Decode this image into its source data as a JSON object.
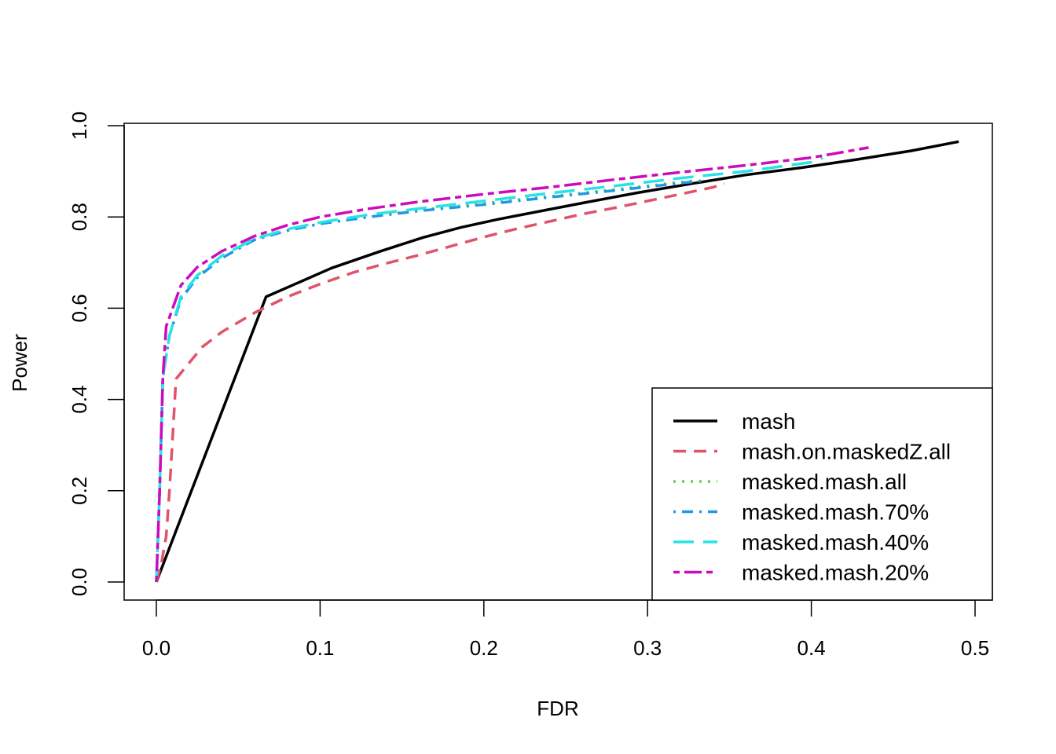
{
  "chart_data": {
    "type": "line",
    "title": "",
    "xlabel": "FDR",
    "ylabel": "Power",
    "xlim": [
      0,
      0.5
    ],
    "ylim": [
      0,
      1
    ],
    "x_ticks": [
      "0.0",
      "0.1",
      "0.2",
      "0.3",
      "0.4",
      "0.5"
    ],
    "y_ticks": [
      "0.0",
      "0.2",
      "0.4",
      "0.6",
      "0.8",
      "1.0"
    ],
    "grid": false,
    "legend_position": "bottom-right",
    "series": [
      {
        "name": "mash",
        "color": "#000000",
        "dash": "solid",
        "points": [
          [
            0,
            0
          ],
          [
            0.067,
            0.625
          ],
          [
            0.107,
            0.688
          ],
          [
            0.137,
            0.725
          ],
          [
            0.163,
            0.755
          ],
          [
            0.186,
            0.777
          ],
          [
            0.209,
            0.795
          ],
          [
            0.235,
            0.813
          ],
          [
            0.264,
            0.833
          ],
          [
            0.294,
            0.853
          ],
          [
            0.327,
            0.873
          ],
          [
            0.36,
            0.892
          ],
          [
            0.394,
            0.908
          ],
          [
            0.428,
            0.926
          ],
          [
            0.461,
            0.945
          ],
          [
            0.49,
            0.965
          ]
        ]
      },
      {
        "name": "mash.on.maskedZ.all",
        "color": "#DF536B",
        "dash": "dashed",
        "points": [
          [
            0,
            0
          ],
          [
            0.003,
            0.04
          ],
          [
            0.006,
            0.1
          ],
          [
            0.008,
            0.2
          ],
          [
            0.01,
            0.32
          ],
          [
            0.012,
            0.445
          ],
          [
            0.02,
            0.48
          ],
          [
            0.028,
            0.515
          ],
          [
            0.04,
            0.548
          ],
          [
            0.06,
            0.59
          ],
          [
            0.08,
            0.625
          ],
          [
            0.1,
            0.653
          ],
          [
            0.12,
            0.678
          ],
          [
            0.14,
            0.698
          ],
          [
            0.16,
            0.716
          ],
          [
            0.18,
            0.736
          ],
          [
            0.2,
            0.756
          ],
          [
            0.22,
            0.774
          ],
          [
            0.24,
            0.79
          ],
          [
            0.26,
            0.806
          ],
          [
            0.28,
            0.82
          ],
          [
            0.3,
            0.835
          ],
          [
            0.32,
            0.85
          ],
          [
            0.34,
            0.865
          ],
          [
            0.347,
            0.873
          ]
        ]
      },
      {
        "name": "masked.mash.all",
        "color": "#61D04F",
        "dash": "dotted",
        "points": [
          [
            0,
            0
          ],
          [
            0.002,
            0.2
          ],
          [
            0.004,
            0.45
          ],
          [
            0.008,
            0.54
          ],
          [
            0.015,
            0.62
          ],
          [
            0.025,
            0.67
          ],
          [
            0.04,
            0.71
          ],
          [
            0.06,
            0.75
          ],
          [
            0.08,
            0.77
          ],
          [
            0.1,
            0.785
          ],
          [
            0.13,
            0.8
          ],
          [
            0.16,
            0.815
          ],
          [
            0.2,
            0.83
          ],
          [
            0.24,
            0.845
          ],
          [
            0.28,
            0.86
          ],
          [
            0.33,
            0.88
          ]
        ]
      },
      {
        "name": "masked.mash.70%",
        "color": "#2297E6",
        "dash": "dotdash",
        "points": [
          [
            0,
            0
          ],
          [
            0.002,
            0.2
          ],
          [
            0.004,
            0.45
          ],
          [
            0.008,
            0.54
          ],
          [
            0.015,
            0.62
          ],
          [
            0.025,
            0.667
          ],
          [
            0.04,
            0.71
          ],
          [
            0.06,
            0.75
          ],
          [
            0.08,
            0.77
          ],
          [
            0.1,
            0.785
          ],
          [
            0.13,
            0.8
          ],
          [
            0.16,
            0.813
          ],
          [
            0.2,
            0.827
          ],
          [
            0.24,
            0.843
          ],
          [
            0.28,
            0.858
          ],
          [
            0.31,
            0.87
          ],
          [
            0.335,
            0.88
          ]
        ]
      },
      {
        "name": "masked.mash.40%",
        "color": "#28E2E5",
        "dash": "longdash",
        "points": [
          [
            0,
            0
          ],
          [
            0.002,
            0.2
          ],
          [
            0.004,
            0.45
          ],
          [
            0.008,
            0.54
          ],
          [
            0.015,
            0.625
          ],
          [
            0.025,
            0.672
          ],
          [
            0.04,
            0.715
          ],
          [
            0.06,
            0.752
          ],
          [
            0.08,
            0.773
          ],
          [
            0.1,
            0.788
          ],
          [
            0.13,
            0.805
          ],
          [
            0.16,
            0.818
          ],
          [
            0.2,
            0.835
          ],
          [
            0.24,
            0.852
          ],
          [
            0.28,
            0.868
          ],
          [
            0.32,
            0.885
          ],
          [
            0.36,
            0.9
          ],
          [
            0.4,
            0.92
          ],
          [
            0.407,
            0.93
          ]
        ]
      },
      {
        "name": "masked.mash.20%",
        "color": "#CD0BBC",
        "dash": "twodash",
        "points": [
          [
            0,
            0
          ],
          [
            0.002,
            0.2
          ],
          [
            0.004,
            0.45
          ],
          [
            0.006,
            0.56
          ],
          [
            0.015,
            0.65
          ],
          [
            0.025,
            0.69
          ],
          [
            0.04,
            0.725
          ],
          [
            0.06,
            0.758
          ],
          [
            0.08,
            0.782
          ],
          [
            0.1,
            0.8
          ],
          [
            0.13,
            0.818
          ],
          [
            0.16,
            0.833
          ],
          [
            0.2,
            0.85
          ],
          [
            0.24,
            0.865
          ],
          [
            0.28,
            0.882
          ],
          [
            0.32,
            0.898
          ],
          [
            0.36,
            0.913
          ],
          [
            0.4,
            0.93
          ],
          [
            0.435,
            0.952
          ]
        ]
      }
    ]
  }
}
